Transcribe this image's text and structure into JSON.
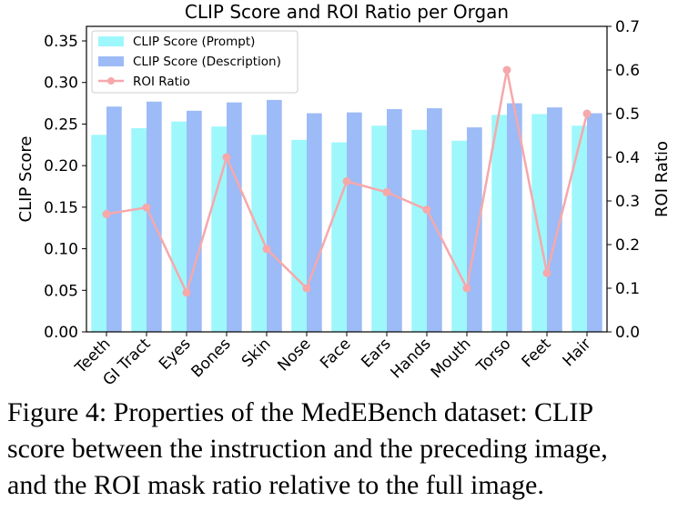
{
  "chart_data": {
    "type": "bar",
    "title": "CLIP Score and ROI Ratio per Organ",
    "ylabel_left": "CLIP Score",
    "ylabel_right": "ROI Ratio",
    "categories": [
      "Teeth",
      "GI Tract",
      "Eyes",
      "Bones",
      "Skin",
      "Nose",
      "Face",
      "Ears",
      "Hands",
      "Mouth",
      "Torso",
      "Feet",
      "Hair"
    ],
    "ylim_left": [
      0,
      0.3675
    ],
    "ylim_right": [
      0,
      0.7
    ],
    "yticks_left": [
      "0.00",
      "0.05",
      "0.10",
      "0.15",
      "0.20",
      "0.25",
      "0.30",
      "0.35"
    ],
    "yticks_right": [
      "0.0",
      "0.1",
      "0.2",
      "0.3",
      "0.4",
      "0.5",
      "0.6",
      "0.7"
    ],
    "series": [
      {
        "name": "CLIP Score (Prompt)",
        "kind": "bar",
        "axis": "left",
        "color": "#9ef7fb",
        "values": [
          0.237,
          0.245,
          0.253,
          0.247,
          0.237,
          0.231,
          0.228,
          0.248,
          0.243,
          0.23,
          0.261,
          0.262,
          0.248
        ]
      },
      {
        "name": "CLIP Score (Description)",
        "kind": "bar",
        "axis": "left",
        "color": "#9cbbf7",
        "values": [
          0.271,
          0.277,
          0.266,
          0.276,
          0.279,
          0.263,
          0.264,
          0.268,
          0.269,
          0.246,
          0.275,
          0.27,
          0.263
        ]
      },
      {
        "name": "ROI Ratio",
        "kind": "line",
        "axis": "right",
        "color": "#f6a8ab",
        "values": [
          0.27,
          0.285,
          0.09,
          0.4,
          0.19,
          0.1,
          0.345,
          0.32,
          0.28,
          0.1,
          0.6,
          0.135,
          0.5
        ]
      }
    ],
    "legend": "top-left",
    "grid": false
  },
  "caption": "Figure 4: Properties of the MedEBench dataset: CLIP\nscore between the instruction and the preceding image,\nand the ROI mask ratio relative to the full image."
}
